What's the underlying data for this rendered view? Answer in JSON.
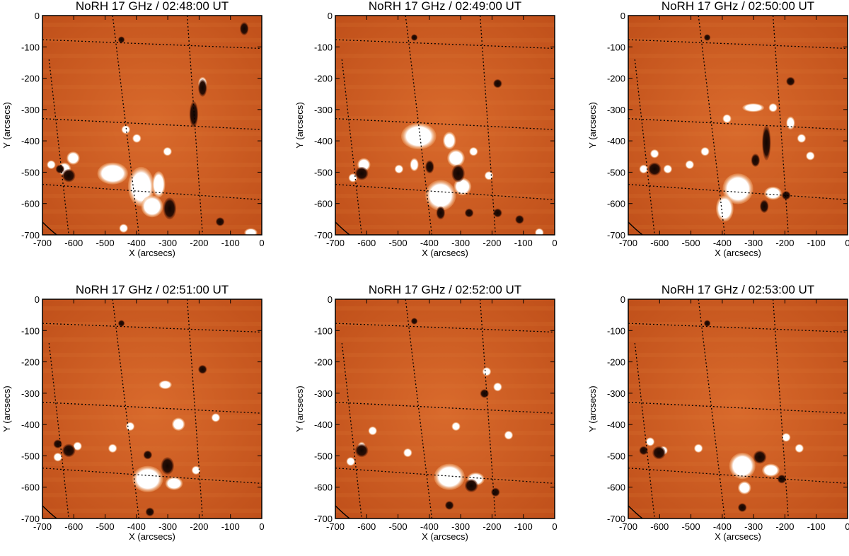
{
  "panels": [
    {
      "title": "NoRH 17 GHz / 02:48:00 UT"
    },
    {
      "title": "NoRH 17 GHz / 02:49:00 UT"
    },
    {
      "title": "NoRH 17 GHz / 02:50:00 UT"
    },
    {
      "title": "NoRH 17 GHz / 02:51:00 UT"
    },
    {
      "title": "NoRH 17 GHz / 02:52:00 UT"
    },
    {
      "title": "NoRH 17 GHz / 02:53:00 UT"
    }
  ],
  "axes": {
    "xlabel": "X (arcsecs)",
    "ylabel": "Y (arcsecs)",
    "xticks": [
      "-700",
      "-600",
      "-500",
      "-400",
      "-300",
      "-200",
      "-100",
      "0"
    ],
    "yticks": [
      "0",
      "-100",
      "-200",
      "-300",
      "-400",
      "-500",
      "-600",
      "-700"
    ],
    "xlim": [
      -700,
      0
    ],
    "ylim": [
      -700,
      0
    ]
  },
  "colors": {
    "background": "#c0501a",
    "bright": "#ffffff",
    "dark": "#1a0a05",
    "grid": "#000000"
  }
}
